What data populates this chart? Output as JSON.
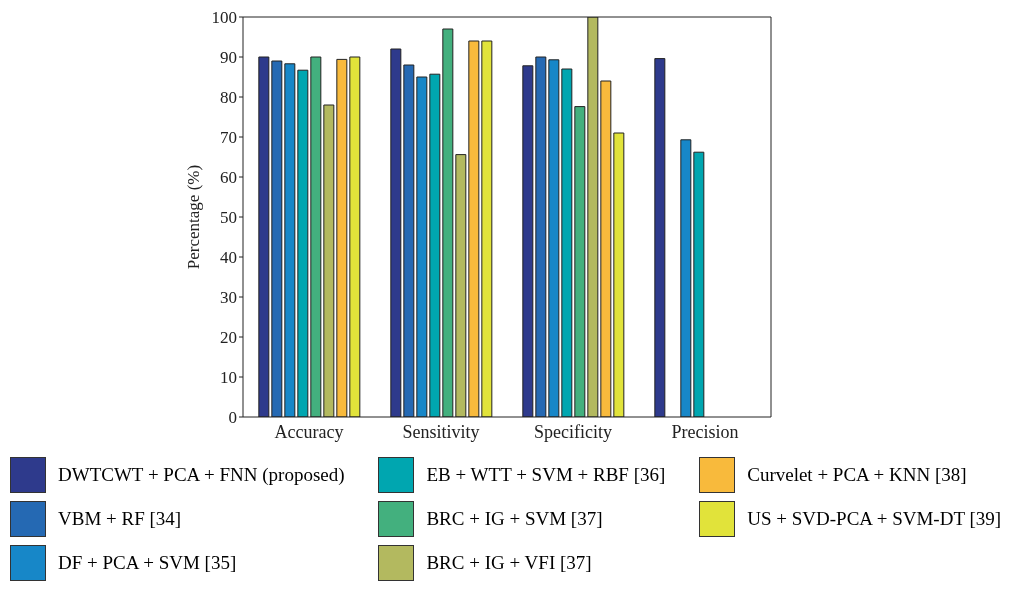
{
  "chart_data": {
    "type": "bar",
    "ylabel": "Percentage (%)",
    "categories": [
      "Accuracy",
      "Sensitivity",
      "Specificity",
      "Precision"
    ],
    "series": [
      {
        "name": "DWTCWT + PCA + FNN (proposed)",
        "color": "#2e3a8c",
        "values": [
          90,
          92,
          87.8,
          89.6
        ]
      },
      {
        "name": "VBM + RF [34]",
        "color": "#2569b3",
        "values": [
          89,
          88,
          90,
          0
        ]
      },
      {
        "name": "DF + PCA + SVM [35]",
        "color": "#1787c8",
        "values": [
          88.3,
          85,
          89.3,
          69.3
        ]
      },
      {
        "name": "EB + WTT + SVM + RBF [36]",
        "color": "#00a6b0",
        "values": [
          86.7,
          85.7,
          87,
          66.2
        ]
      },
      {
        "name": "BRC + IG + SVM [37]",
        "color": "#43b07e",
        "values": [
          90,
          97,
          77.6,
          0
        ]
      },
      {
        "name": "BRC + IG + VFI [37]",
        "color": "#b3b95f",
        "values": [
          78,
          65.6,
          100,
          0
        ]
      },
      {
        "name": "Curvelet + PCA + KNN [38]",
        "color": "#f8ba3c",
        "values": [
          89.4,
          94,
          84,
          0
        ]
      },
      {
        "name": "US + SVD-PCA + SVM-DT [39]",
        "color": "#e1e33a",
        "values": [
          90,
          94,
          71,
          0
        ]
      }
    ],
    "ylim": [
      0,
      100
    ],
    "yticks": [
      0,
      10,
      20,
      30,
      40,
      50,
      60,
      70,
      80,
      90,
      100
    ],
    "legend": "bottom"
  }
}
